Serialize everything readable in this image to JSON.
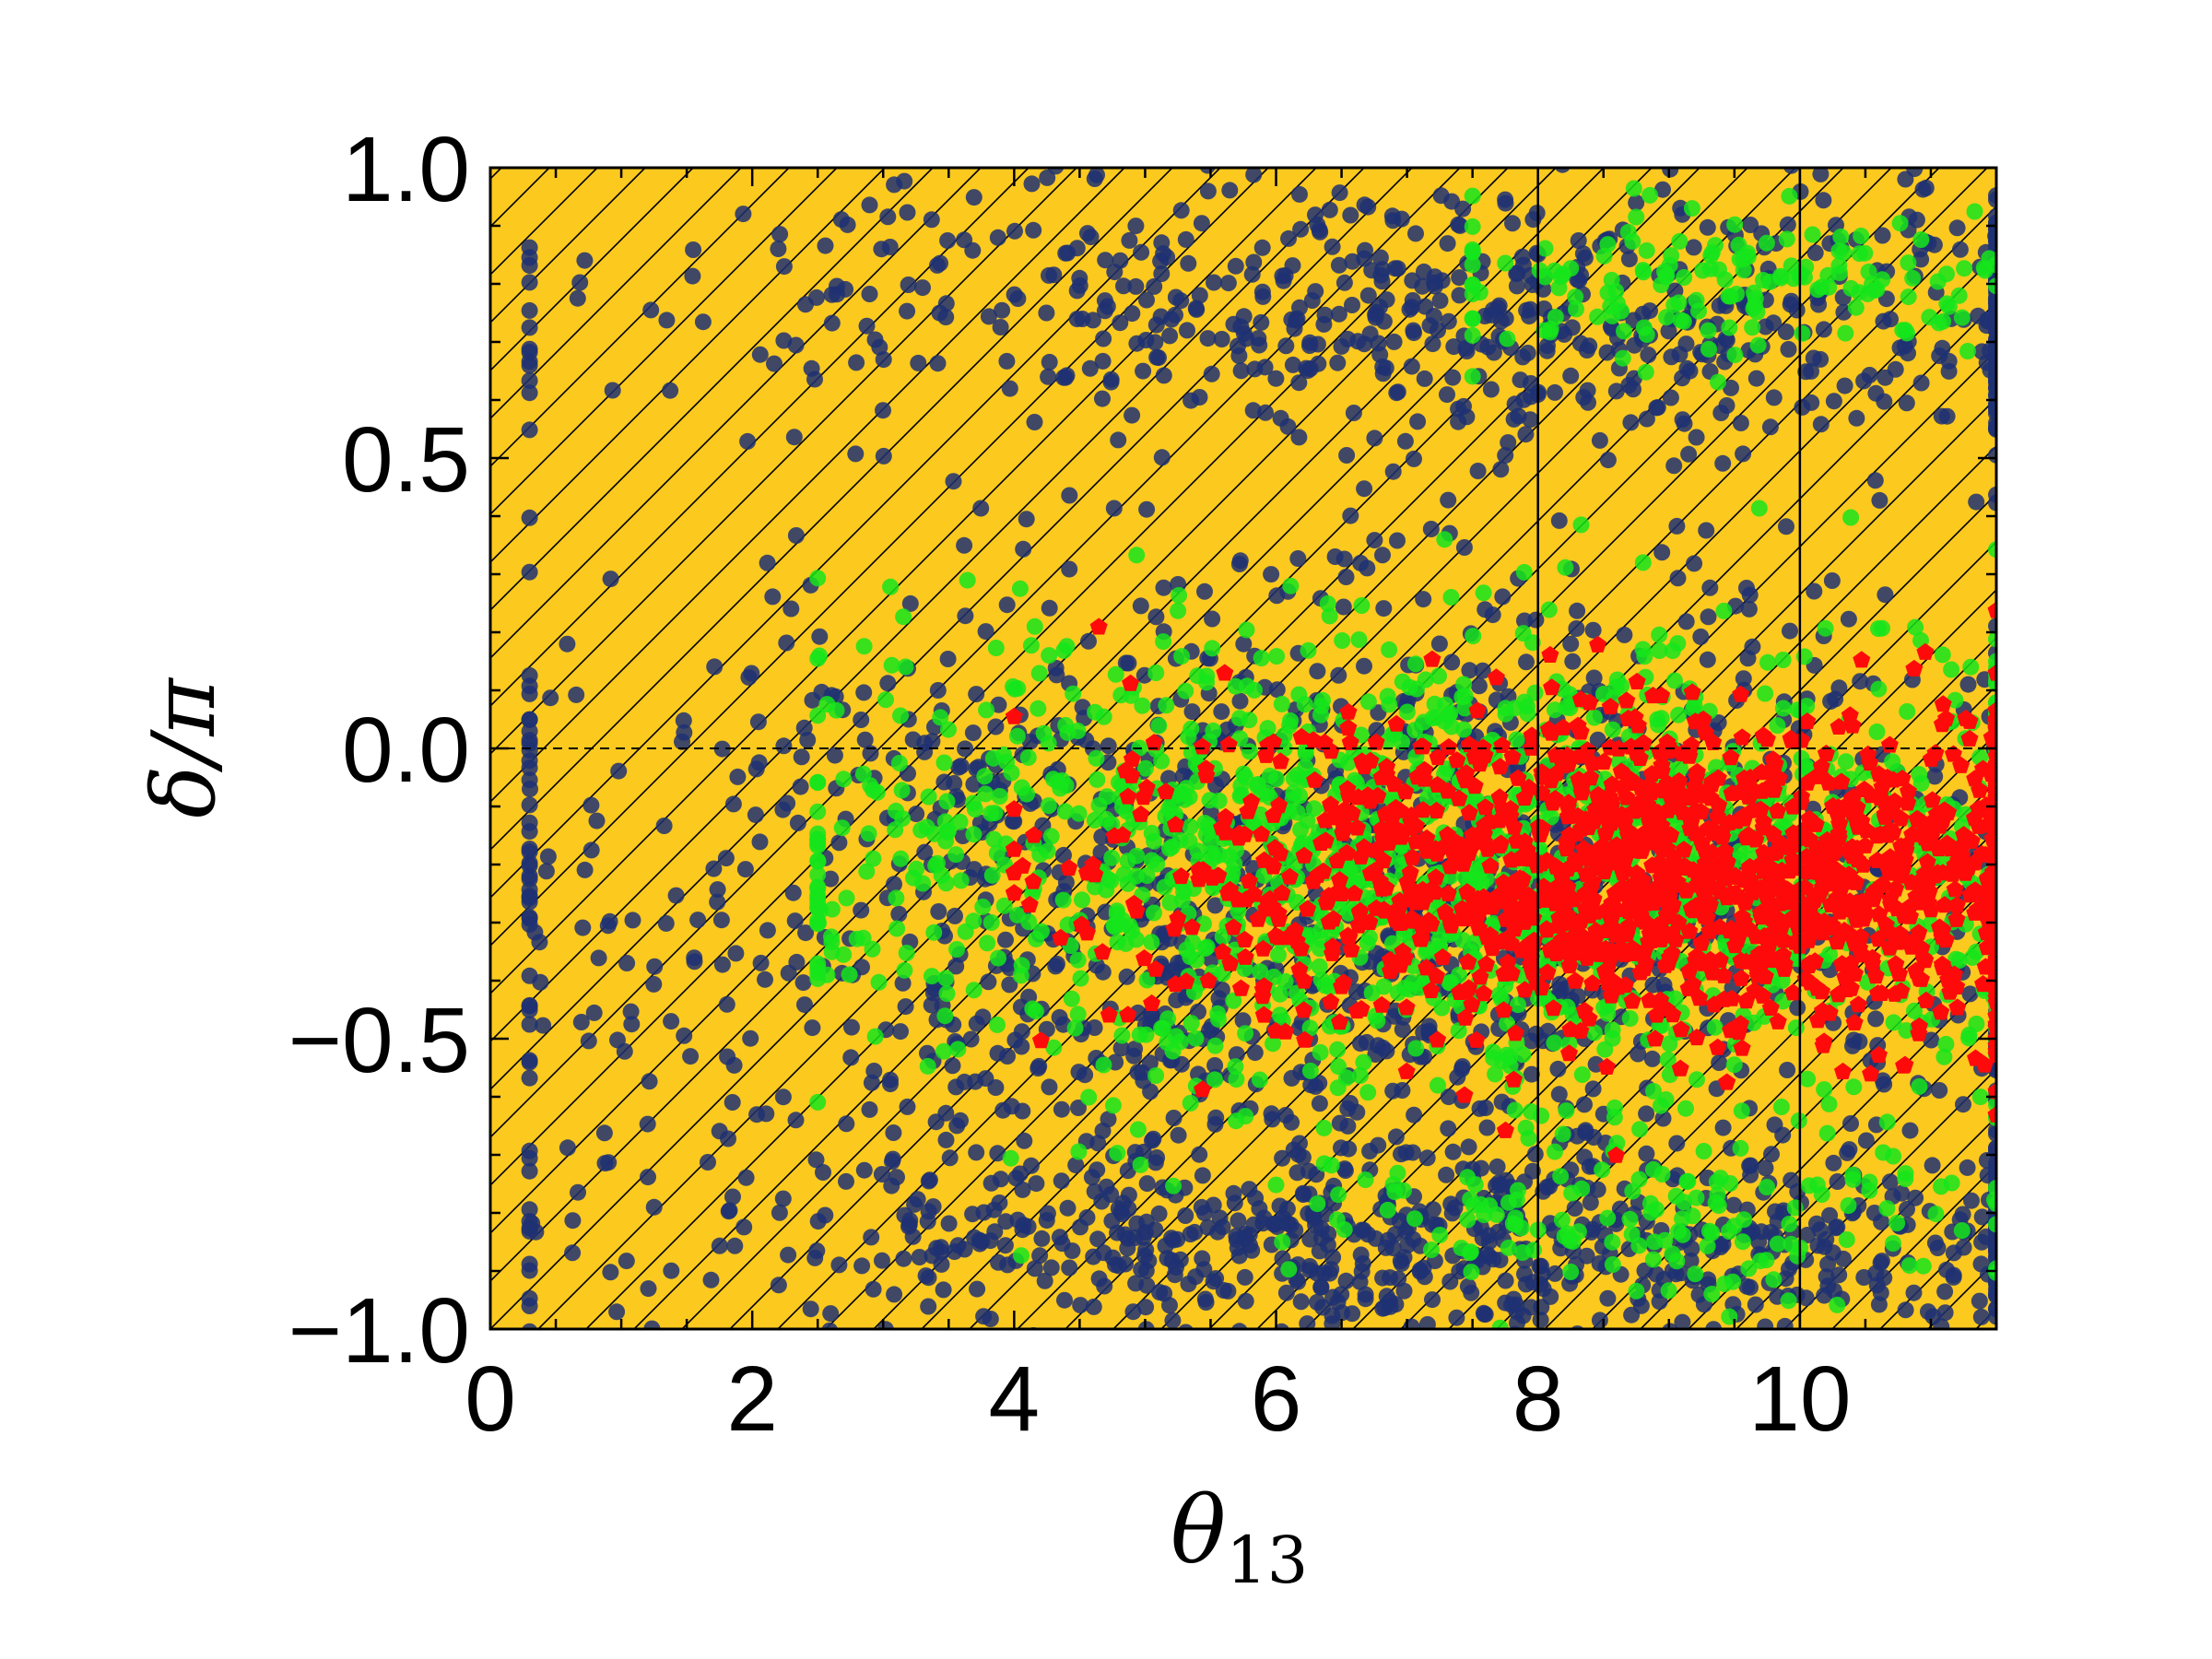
{
  "chart_data": {
    "type": "scatter",
    "xlabel": "θ",
    "xlabel_subscript": "13",
    "ylabel": "δ/π",
    "xlim": [
      0,
      11.5
    ],
    "ylim": [
      -1.0,
      1.0
    ],
    "xticks": [
      0,
      2,
      4,
      6,
      8,
      10
    ],
    "xtick_labels": [
      "0",
      "2",
      "4",
      "6",
      "8",
      "10"
    ],
    "yticks": [
      -1.0,
      -0.5,
      0.0,
      0.5,
      1.0
    ],
    "ytick_labels": [
      "−1.0",
      "−0.5",
      "0.0",
      "0.5",
      "1.0"
    ],
    "background_color": "#fcc91f",
    "hatch": "diagonal lines",
    "reference_lines": {
      "horizontal_dashed_y": 0.0,
      "vertical_solid_x": [
        8,
        10
      ]
    },
    "series": [
      {
        "color": "#1f3173",
        "marker": "circle",
        "regions": [
          {
            "x_range": [
              0.3,
              11.5
            ],
            "y_center": -0.25,
            "y_halfwidth": 0.55,
            "density": "high",
            "x_center": 6.5
          },
          {
            "x_range": [
              0.3,
              11.5
            ],
            "y_center": 0.75,
            "y_halfwidth": 0.22,
            "density": "medium",
            "x_center": 8.0
          },
          {
            "x_range": [
              0.3,
              11.5
            ],
            "y_center": -0.85,
            "y_halfwidth": 0.15,
            "density": "medium",
            "x_center": 7.5
          }
        ]
      },
      {
        "color": "#15e51b",
        "marker": "circle",
        "regions": [
          {
            "x_range": [
              2.5,
              11.5
            ],
            "y_center": -0.2,
            "y_halfwidth": 0.35,
            "density": "high",
            "x_center": 7.5
          },
          {
            "x_range": [
              7.5,
              11.5
            ],
            "y_center": 0.8,
            "y_halfwidth": 0.12,
            "density": "low",
            "x_center": 9.5
          },
          {
            "x_range": [
              6.0,
              11.5
            ],
            "y_center": -0.8,
            "y_halfwidth": 0.15,
            "density": "low",
            "x_center": 9.0
          }
        ]
      },
      {
        "color": "#ff0a0a",
        "marker": "pentagon",
        "regions": [
          {
            "x_range": [
              4.0,
              11.5
            ],
            "y_center": -0.22,
            "y_halfwidth": 0.25,
            "density": "high",
            "x_center": 9.3
          }
        ]
      }
    ]
  }
}
